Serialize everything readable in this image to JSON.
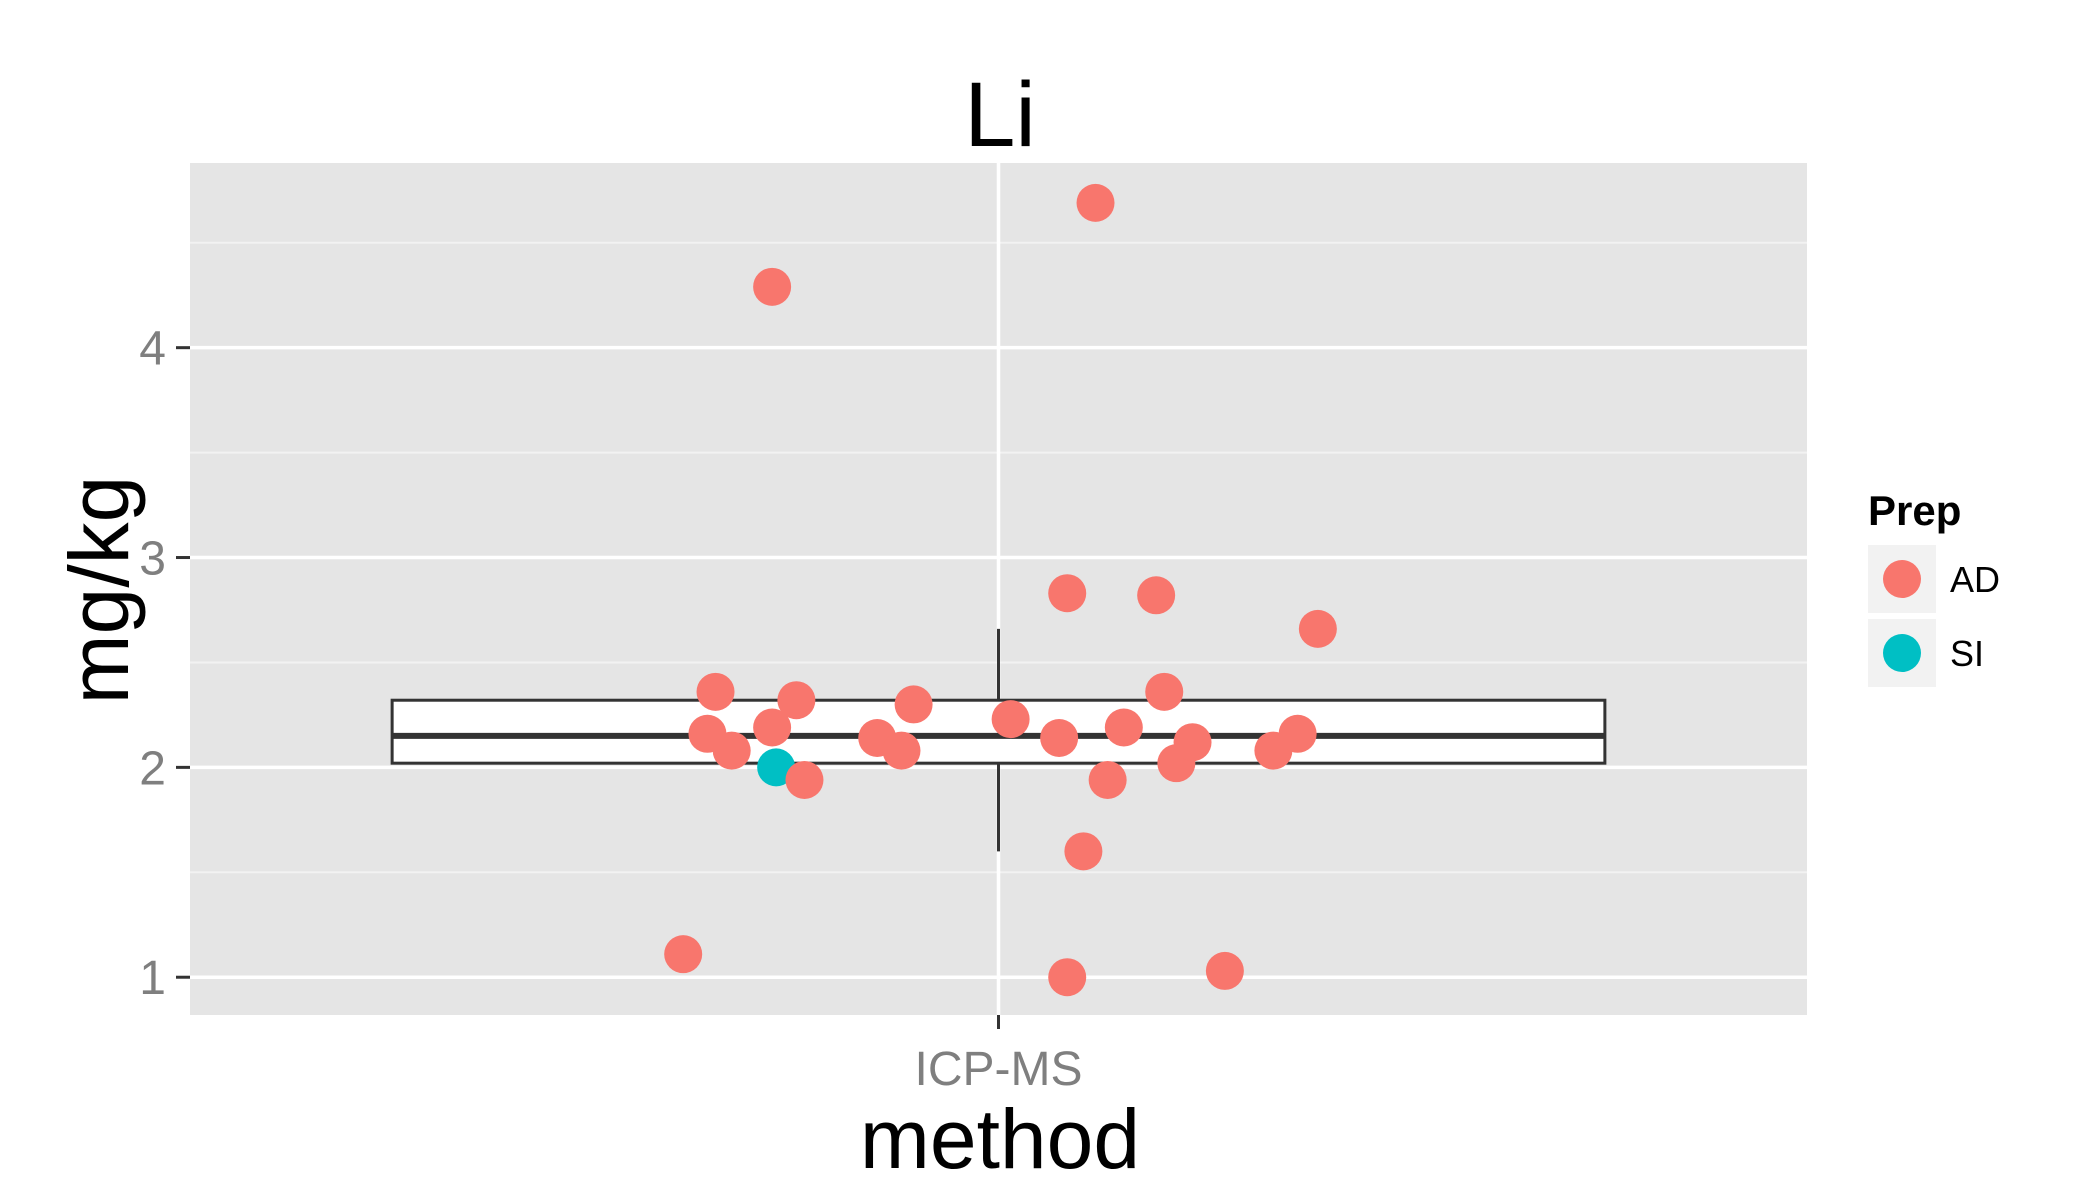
{
  "chart_data": {
    "type": "boxplot-jitter",
    "title": "Li",
    "xlabel": "method",
    "ylabel": "mg/kg",
    "categories": [
      "ICP-MS"
    ],
    "ylim": [
      0.82,
      4.88
    ],
    "yticks": [
      1,
      2,
      3,
      4
    ],
    "grid": true,
    "legend": {
      "title": "Prep",
      "position": "right",
      "entries": [
        {
          "label": "AD",
          "color": "#F8766D"
        },
        {
          "label": "SI",
          "color": "#00BFC4"
        }
      ]
    },
    "box": {
      "category": "ICP-MS",
      "q1": 2.02,
      "median": 2.15,
      "q3": 2.32,
      "whisker_low": 1.6,
      "whisker_high": 2.66
    },
    "points": [
      {
        "x": -0.39,
        "y": 1.11,
        "prep": "AD"
      },
      {
        "x": -0.28,
        "y": 4.29,
        "prep": "AD"
      },
      {
        "x": 0.12,
        "y": 4.69,
        "prep": "AD"
      },
      {
        "x": -0.36,
        "y": 2.16,
        "prep": "AD"
      },
      {
        "x": -0.35,
        "y": 2.36,
        "prep": "AD"
      },
      {
        "x": -0.33,
        "y": 2.08,
        "prep": "AD"
      },
      {
        "x": -0.28,
        "y": 2.19,
        "prep": "AD"
      },
      {
        "x": -0.275,
        "y": 2.0,
        "prep": "SI"
      },
      {
        "x": -0.25,
        "y": 2.32,
        "prep": "AD"
      },
      {
        "x": -0.24,
        "y": 1.94,
        "prep": "AD"
      },
      {
        "x": -0.15,
        "y": 2.14,
        "prep": "AD"
      },
      {
        "x": -0.12,
        "y": 2.08,
        "prep": "AD"
      },
      {
        "x": -0.105,
        "y": 2.3,
        "prep": "AD"
      },
      {
        "x": 0.015,
        "y": 2.23,
        "prep": "AD"
      },
      {
        "x": 0.075,
        "y": 2.14,
        "prep": "AD"
      },
      {
        "x": 0.085,
        "y": 2.83,
        "prep": "AD"
      },
      {
        "x": 0.085,
        "y": 1.0,
        "prep": "AD"
      },
      {
        "x": 0.105,
        "y": 1.6,
        "prep": "AD"
      },
      {
        "x": 0.135,
        "y": 1.94,
        "prep": "AD"
      },
      {
        "x": 0.155,
        "y": 2.19,
        "prep": "AD"
      },
      {
        "x": 0.195,
        "y": 2.82,
        "prep": "AD"
      },
      {
        "x": 0.205,
        "y": 2.36,
        "prep": "AD"
      },
      {
        "x": 0.22,
        "y": 2.02,
        "prep": "AD"
      },
      {
        "x": 0.24,
        "y": 2.12,
        "prep": "AD"
      },
      {
        "x": 0.28,
        "y": 1.03,
        "prep": "AD"
      },
      {
        "x": 0.34,
        "y": 2.08,
        "prep": "AD"
      },
      {
        "x": 0.37,
        "y": 2.16,
        "prep": "AD"
      },
      {
        "x": 0.395,
        "y": 2.66,
        "prep": "AD"
      }
    ]
  }
}
